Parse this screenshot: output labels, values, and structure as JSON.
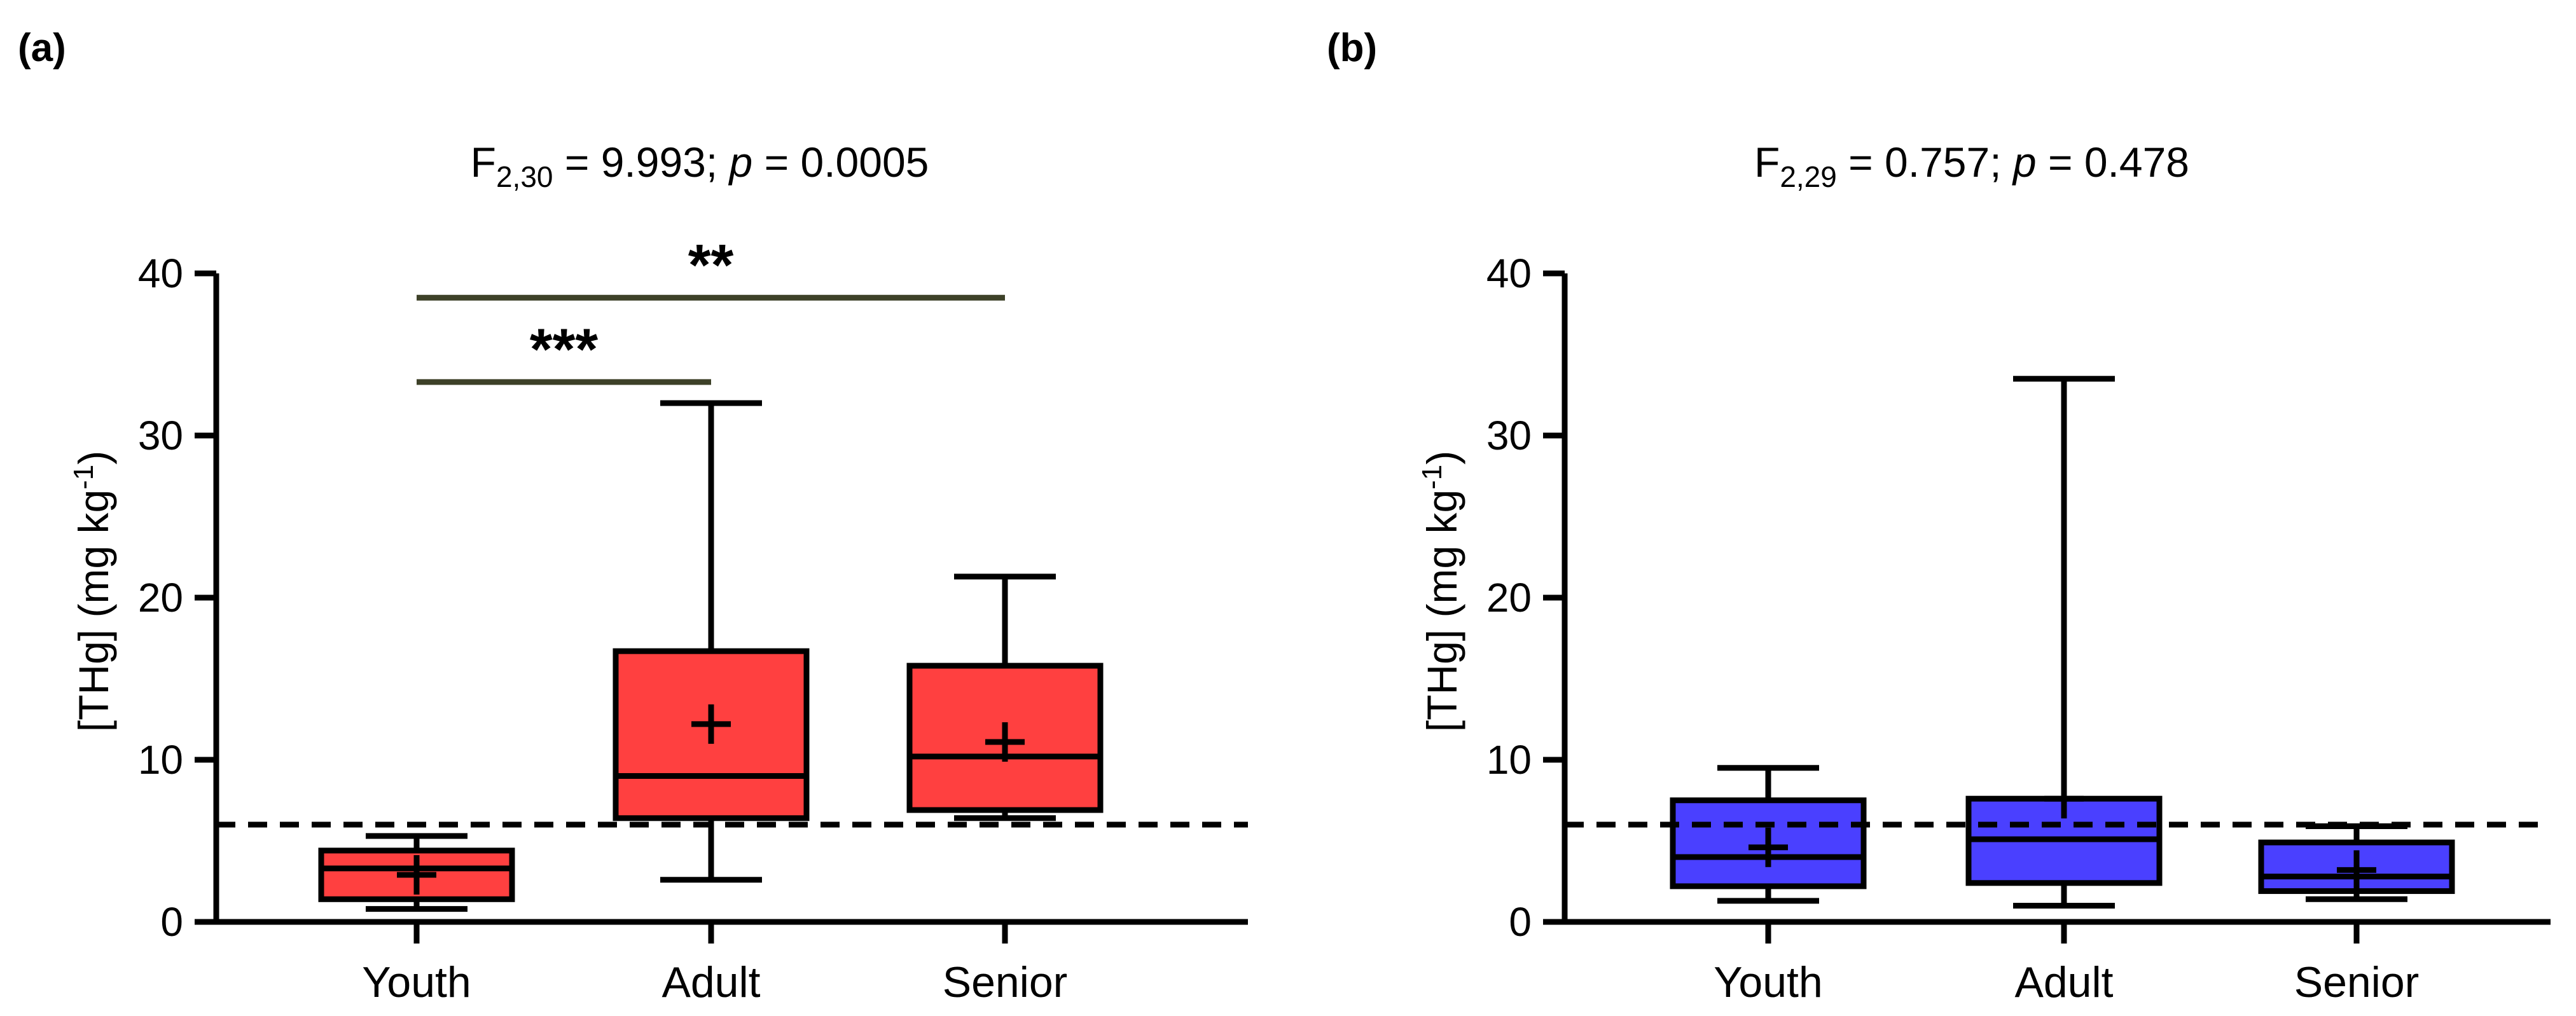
{
  "chart_data": [
    {
      "panel": "(a)",
      "type": "box",
      "title": {
        "main": "F",
        "subscript": "2,30",
        "rest_prefix": " = 9.993; ",
        "p_italic": "p",
        "rest_suffix": " = 0.0005"
      },
      "ylabel": {
        "main": "[THg] (mg kg",
        "superscript": "-1",
        "close": ")"
      },
      "categories": [
        "Youth",
        "Adult",
        "Senior"
      ],
      "ylim": [
        0,
        40
      ],
      "yticks": [
        "0",
        "10",
        "20",
        "30",
        "40"
      ],
      "reference_line": 6,
      "color": "#ff4040",
      "boxes": [
        {
          "category": "Youth",
          "whisker_low": 0.8,
          "q1": 1.4,
          "median": 3.3,
          "q3": 4.4,
          "whisker_high": 5.3,
          "mean": 2.9
        },
        {
          "category": "Adult",
          "whisker_low": 2.6,
          "q1": 6.4,
          "median": 9.0,
          "q3": 16.7,
          "whisker_high": 32.0,
          "mean": 12.2
        },
        {
          "category": "Senior",
          "whisker_low": 6.4,
          "q1": 6.9,
          "median": 10.2,
          "q3": 15.8,
          "whisker_high": 21.3,
          "mean": 11.1
        }
      ],
      "significance": [
        {
          "from": "Youth",
          "to": "Adult",
          "y": 33.3,
          "label": "***"
        },
        {
          "from": "Youth",
          "to": "Senior",
          "y": 38.5,
          "label": "**"
        }
      ]
    },
    {
      "panel": "(b)",
      "type": "box",
      "title": {
        "main": "F",
        "subscript": "2,29",
        "rest_prefix": " = 0.757; ",
        "p_italic": "p",
        "rest_suffix": " = 0.478"
      },
      "ylabel": {
        "main": "[THg] (mg kg",
        "superscript": "-1",
        "close": ")"
      },
      "categories": [
        "Youth",
        "Adult",
        "Senior"
      ],
      "ylim": [
        0,
        40
      ],
      "yticks": [
        "0",
        "10",
        "20",
        "30",
        "40"
      ],
      "reference_line": 6,
      "color": "#4a40ff",
      "boxes": [
        {
          "category": "Youth",
          "whisker_low": 1.3,
          "q1": 2.2,
          "median": 4.0,
          "q3": 7.5,
          "whisker_high": 9.5,
          "mean": 4.6
        },
        {
          "category": "Adult",
          "whisker_low": 1.0,
          "q1": 2.4,
          "median": 5.1,
          "q3": 7.6,
          "whisker_high": 33.5,
          "mean": 7.6
        },
        {
          "category": "Senior",
          "whisker_low": 1.4,
          "q1": 1.9,
          "median": 2.8,
          "q3": 4.9,
          "whisker_high": 5.9,
          "mean": 3.2
        }
      ],
      "significance": []
    }
  ]
}
